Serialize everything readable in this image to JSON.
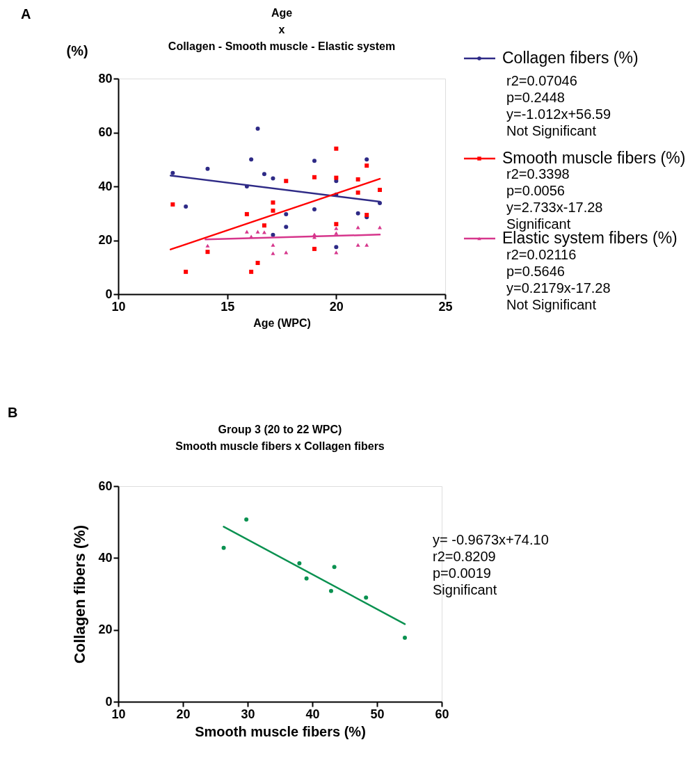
{
  "chart_data": [
    {
      "type": "scatter",
      "title": "Age\nx\nCollagen - Smooth muscle  - Elastic system",
      "xlabel": "Age (WPC)",
      "ylabel": "(%)",
      "xlim": [
        10,
        25
      ],
      "xticks": [
        10,
        15,
        20,
        25
      ],
      "ylim": [
        0,
        80
      ],
      "yticks": [
        0,
        20,
        40,
        60,
        80
      ],
      "legend": "right",
      "series": [
        {
          "name": "Collagen fibers (%)",
          "color": "#2e2a86",
          "marker": "circle",
          "x": [
            12.5,
            13.1,
            14.1,
            15.9,
            16.1,
            16.4,
            16.7,
            17.1,
            17.1,
            17.7,
            17.7,
            19.0,
            19.0,
            20.0,
            20.0,
            20.0,
            21.0,
            21.4,
            21.4,
            22.0
          ],
          "values": [
            45,
            32.5,
            46.5,
            40,
            50,
            61.4,
            44.6,
            43,
            22,
            29.7,
            25,
            49.5,
            31.5,
            42,
            37,
            17.5,
            30,
            50,
            28.6,
            33.8
          ]
        },
        {
          "name": "Smooth muscle fibers (%)",
          "color": "#ff0000",
          "marker": "square",
          "x": [
            12.5,
            13.1,
            14.1,
            15.9,
            16.1,
            16.4,
            16.7,
            17.1,
            17.1,
            17.7,
            19.0,
            19.0,
            20.0,
            20.0,
            20.0,
            21.0,
            21.0,
            21.4,
            21.4,
            22.0
          ],
          "values": [
            33.3,
            8.3,
            15.7,
            29.7,
            8.3,
            11.6,
            25.5,
            34,
            31,
            42,
            43.4,
            16.8,
            54,
            43.2,
            26,
            42.6,
            37.7,
            47.7,
            29.4,
            38.7
          ]
        },
        {
          "name": "Elastic system fibers (%)",
          "color": "#d6368c",
          "marker": "triangle",
          "x": [
            14.1,
            15.9,
            16.1,
            16.4,
            16.7,
            17.1,
            17.1,
            17.7,
            19.0,
            19.0,
            20.0,
            20.0,
            20.0,
            21.0,
            21.0,
            21.4,
            22.0
          ],
          "values": [
            18,
            23.2,
            21.4,
            23.2,
            23,
            18.3,
            15.2,
            15.5,
            22.2,
            21.2,
            24.5,
            22.7,
            15.5,
            24.8,
            18.3,
            18.3,
            24.8
          ]
        },
        {
          "type": "line",
          "color": "#2e2a86",
          "x": [
            12.4,
            22.0
          ],
          "values": [
            44.0,
            34.3
          ]
        },
        {
          "type": "line",
          "color": "#ff0000",
          "x": [
            12.4,
            22.0
          ],
          "values": [
            16.6,
            42.8
          ]
        },
        {
          "type": "line",
          "color": "#d6368c",
          "x": [
            14.0,
            22.0
          ],
          "values": [
            20.3,
            22.1
          ]
        }
      ],
      "annotations": [
        "A",
        "r2=0.07046\np=0.2448\ny=-1.012x+56.59\nNot Significant",
        "r2=0.3398\np=0.0056\ny=2.733x-17.28\nSignificant",
        "r2=0.02116\np=0.5646\ny=0.2179x-17.28\nNot Significant"
      ]
    },
    {
      "type": "scatter",
      "title": "Group 3 (20 to 22 WPC)\nSmooth muscle fibers x Collagen fibers",
      "xlabel": "Smooth muscle fibers (%)",
      "ylabel": "Collagen fibers (%)",
      "xlim": [
        10,
        60
      ],
      "xticks": [
        10,
        20,
        30,
        40,
        50,
        60
      ],
      "ylim": [
        0,
        60
      ],
      "yticks": [
        0,
        20,
        40,
        60
      ],
      "series": [
        {
          "color": "#0a9150",
          "marker": "circle",
          "x": [
            26.3,
            29.8,
            38.0,
            39.1,
            42.9,
            43.4,
            48.3,
            54.3
          ],
          "values": [
            42.8,
            50.7,
            38.5,
            34.3,
            30.8,
            37.5,
            29.0,
            17.8
          ]
        },
        {
          "type": "line",
          "color": "#0a9150",
          "x": [
            26.3,
            54.3
          ],
          "values": [
            48.7,
            21.6
          ]
        }
      ],
      "annotations": [
        "B",
        "y= -0.9673x+74.10\nr2=0.8209\np=0.0019\nSignificant"
      ]
    }
  ]
}
